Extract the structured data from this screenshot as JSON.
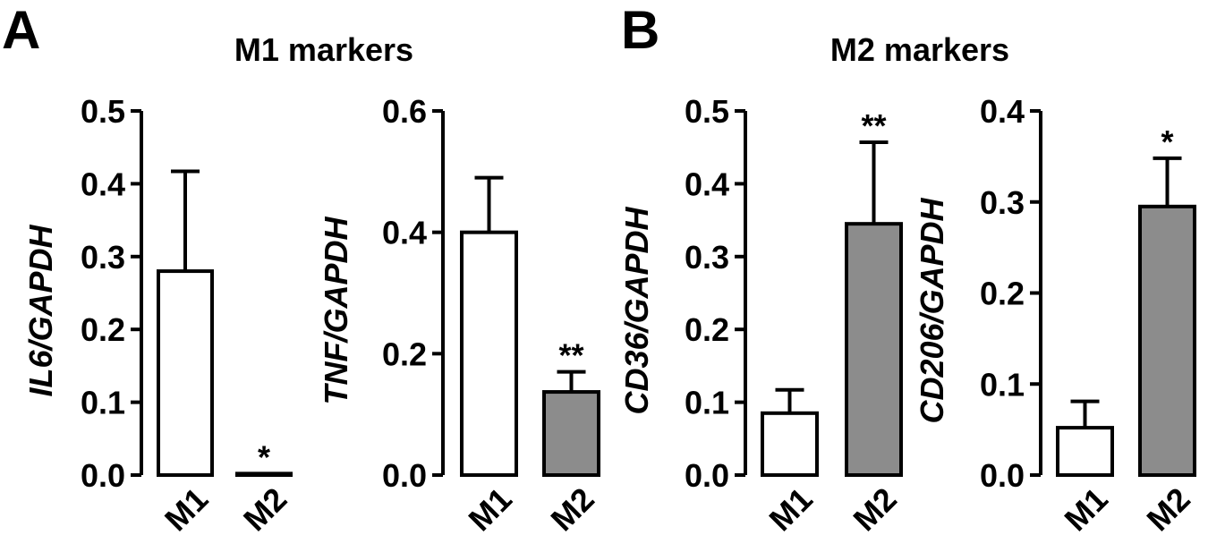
{
  "figure": {
    "panels": [
      {
        "letter": "A",
        "title": "M1 markers"
      },
      {
        "letter": "B",
        "title": "M2 markers"
      }
    ]
  },
  "chart_data": [
    {
      "type": "bar",
      "panel": "A",
      "ylabel": "IL6/GAPDH",
      "categories": [
        "M1",
        "M2"
      ],
      "values": [
        0.28,
        0.002
      ],
      "errors": [
        0.137,
        0.0
      ],
      "fills": [
        "#ffffff",
        "#8c8c8c"
      ],
      "significance": [
        "",
        "*"
      ],
      "ylim": [
        0,
        0.5
      ],
      "yticks": [
        0.0,
        0.1,
        0.2,
        0.3,
        0.4,
        0.5
      ],
      "ytick_labels": [
        "0.0",
        "0.1",
        "0.2",
        "0.3",
        "0.4",
        "0.5"
      ]
    },
    {
      "type": "bar",
      "panel": "A",
      "ylabel": "TNF/GAPDH",
      "categories": [
        "M1",
        "M2"
      ],
      "values": [
        0.4,
        0.137
      ],
      "errors": [
        0.09,
        0.033
      ],
      "fills": [
        "#ffffff",
        "#8c8c8c"
      ],
      "significance": [
        "",
        "**"
      ],
      "ylim": [
        0,
        0.6
      ],
      "yticks": [
        0.0,
        0.2,
        0.4,
        0.6
      ],
      "ytick_labels": [
        "0.0",
        "0.2",
        "0.4",
        "0.6"
      ]
    },
    {
      "type": "bar",
      "panel": "B",
      "ylabel": "CD36/GAPDH",
      "categories": [
        "M1",
        "M2"
      ],
      "values": [
        0.085,
        0.345
      ],
      "errors": [
        0.032,
        0.112
      ],
      "fills": [
        "#ffffff",
        "#8c8c8c"
      ],
      "significance": [
        "",
        "**"
      ],
      "ylim": [
        0,
        0.5
      ],
      "yticks": [
        0.0,
        0.1,
        0.2,
        0.3,
        0.4,
        0.5
      ],
      "ytick_labels": [
        "0.0",
        "0.1",
        "0.2",
        "0.3",
        "0.4",
        "0.5"
      ]
    },
    {
      "type": "bar",
      "panel": "B",
      "ylabel": "CD206/GAPDH",
      "categories": [
        "M1",
        "M2"
      ],
      "values": [
        0.052,
        0.295
      ],
      "errors": [
        0.029,
        0.053
      ],
      "fills": [
        "#ffffff",
        "#8c8c8c"
      ],
      "significance": [
        "",
        "*"
      ],
      "ylim": [
        0,
        0.4
      ],
      "yticks": [
        0.0,
        0.1,
        0.2,
        0.3,
        0.4
      ],
      "ytick_labels": [
        "0.0",
        "0.1",
        "0.2",
        "0.3",
        "0.4"
      ]
    }
  ]
}
